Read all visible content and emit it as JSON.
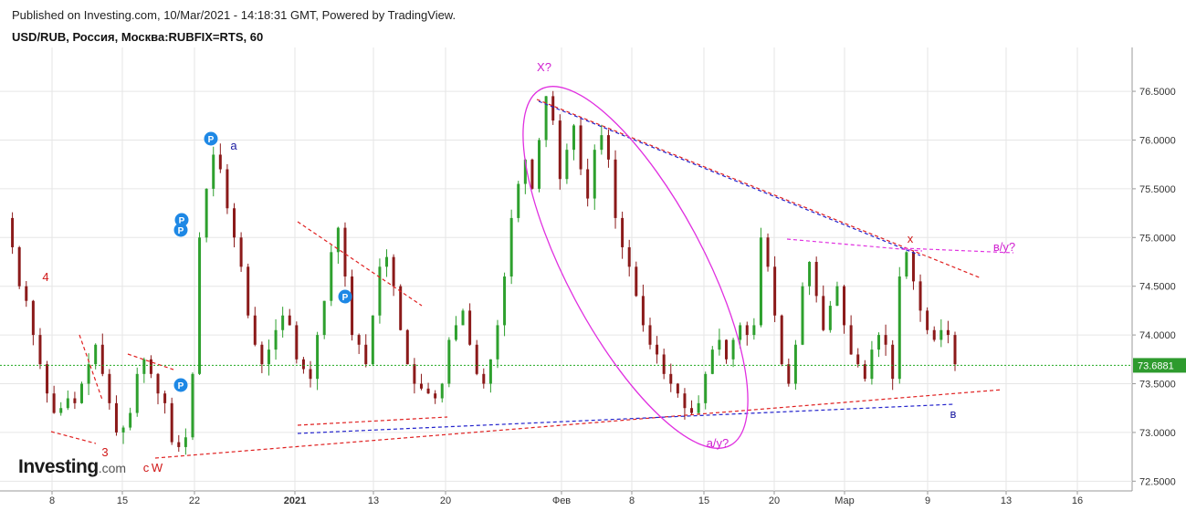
{
  "header": {
    "published_line": "Published on Investing.com, 10/Mar/2021 - 14:18:31 GMT, Powered by TradingView.",
    "symbol_line": "USD/RUB, Россия, Москва:RUBFIX=RTS, 60"
  },
  "logo": {
    "main": "Investing",
    "suffix": ".com"
  },
  "colors": {
    "up": "#2ea02e",
    "down": "#8b1a1a",
    "grid": "#e6e6e6",
    "last_price_line": "#22aa22",
    "price_tag_bg": "#2e9b2e",
    "ellipse": "#e030e0",
    "red_dash": "#e02020",
    "blue_dash": "#2222cc",
    "magenta_dash": "#e030e0",
    "label_blue": "#1a1aa0",
    "label_red": "#d01818",
    "label_magenta": "#d020d0",
    "p_marker": "#1e88e5"
  },
  "chart_data": {
    "type": "line",
    "title": "USD/RUB, Россия, Москва:RUBFIX=RTS, 60",
    "y_ticks": [
      "72.5000",
      "73.0000",
      "73.5000",
      "74.0000",
      "74.5000",
      "75.0000",
      "75.5000",
      "76.0000",
      "76.5000"
    ],
    "ylim": [
      72.4,
      76.95
    ],
    "x_ticks": [
      "8",
      "15",
      "22",
      "2021",
      "13",
      "20",
      "Фев",
      "8",
      "15",
      "20",
      "Мар",
      "9",
      "13",
      "16"
    ],
    "last_price": "73.6881",
    "series": [
      {
        "values": [
          75.2,
          74.9,
          74.5,
          74.35,
          74.0,
          73.7,
          73.4,
          73.2,
          73.25,
          73.35,
          73.3,
          73.5,
          73.7,
          73.9,
          73.6,
          73.3,
          73.0,
          73.05,
          73.2,
          73.6,
          73.75,
          73.6,
          73.4,
          73.3,
          72.9,
          72.85,
          72.95,
          73.6,
          75.0,
          75.5,
          75.85,
          75.7,
          75.3,
          75.0,
          74.7,
          74.2,
          73.9,
          73.7,
          73.85,
          74.05,
          74.2,
          74.1,
          73.75,
          73.65,
          73.55,
          74.0,
          74.35,
          74.85,
          75.1,
          74.6,
          74.0,
          73.9,
          73.7,
          74.2,
          74.7,
          74.8,
          74.5,
          74.05,
          73.7,
          73.5,
          73.45,
          73.4,
          73.35,
          73.5,
          73.95,
          74.1,
          74.25,
          73.9,
          73.6,
          73.5,
          73.75,
          74.1,
          74.6,
          75.2,
          75.55,
          75.8,
          75.5,
          76.0,
          76.45,
          76.2,
          75.6,
          75.9,
          76.15,
          75.7,
          75.4,
          75.9,
          76.05,
          75.8,
          75.2,
          74.9,
          74.7,
          74.4,
          74.1,
          73.9,
          73.8,
          73.6,
          73.5,
          73.4,
          73.25,
          73.2,
          73.3,
          73.6,
          73.85,
          73.95,
          73.75,
          73.95,
          74.1,
          74.0,
          74.1,
          75.0,
          74.7,
          74.2,
          73.7,
          73.5,
          73.9,
          74.5,
          74.75,
          74.4,
          74.05,
          74.3,
          74.5,
          74.1,
          73.8,
          73.7,
          73.55,
          73.85,
          74.0,
          73.9,
          73.55,
          74.6,
          74.85,
          74.55,
          74.25,
          74.05,
          73.95,
          74.05,
          74.0,
          73.7
        ],
        "marker_style": "candlestick"
      }
    ],
    "annotations": [
      {
        "id": "label-4",
        "text": "4"
      },
      {
        "id": "label-3",
        "text": "3"
      },
      {
        "id": "label-c",
        "text": "c"
      },
      {
        "id": "label-W",
        "text": "W"
      },
      {
        "id": "label-a",
        "text": "a"
      },
      {
        "id": "label-xq",
        "text": "X?"
      },
      {
        "id": "label-ay",
        "text": "a/y?"
      },
      {
        "id": "label-x",
        "text": "x"
      },
      {
        "id": "label-vy",
        "text": "в/у?"
      },
      {
        "id": "label-v",
        "text": "в"
      }
    ],
    "p_markers": [
      "P",
      "P",
      "P",
      "P",
      "P"
    ],
    "grid": true
  }
}
